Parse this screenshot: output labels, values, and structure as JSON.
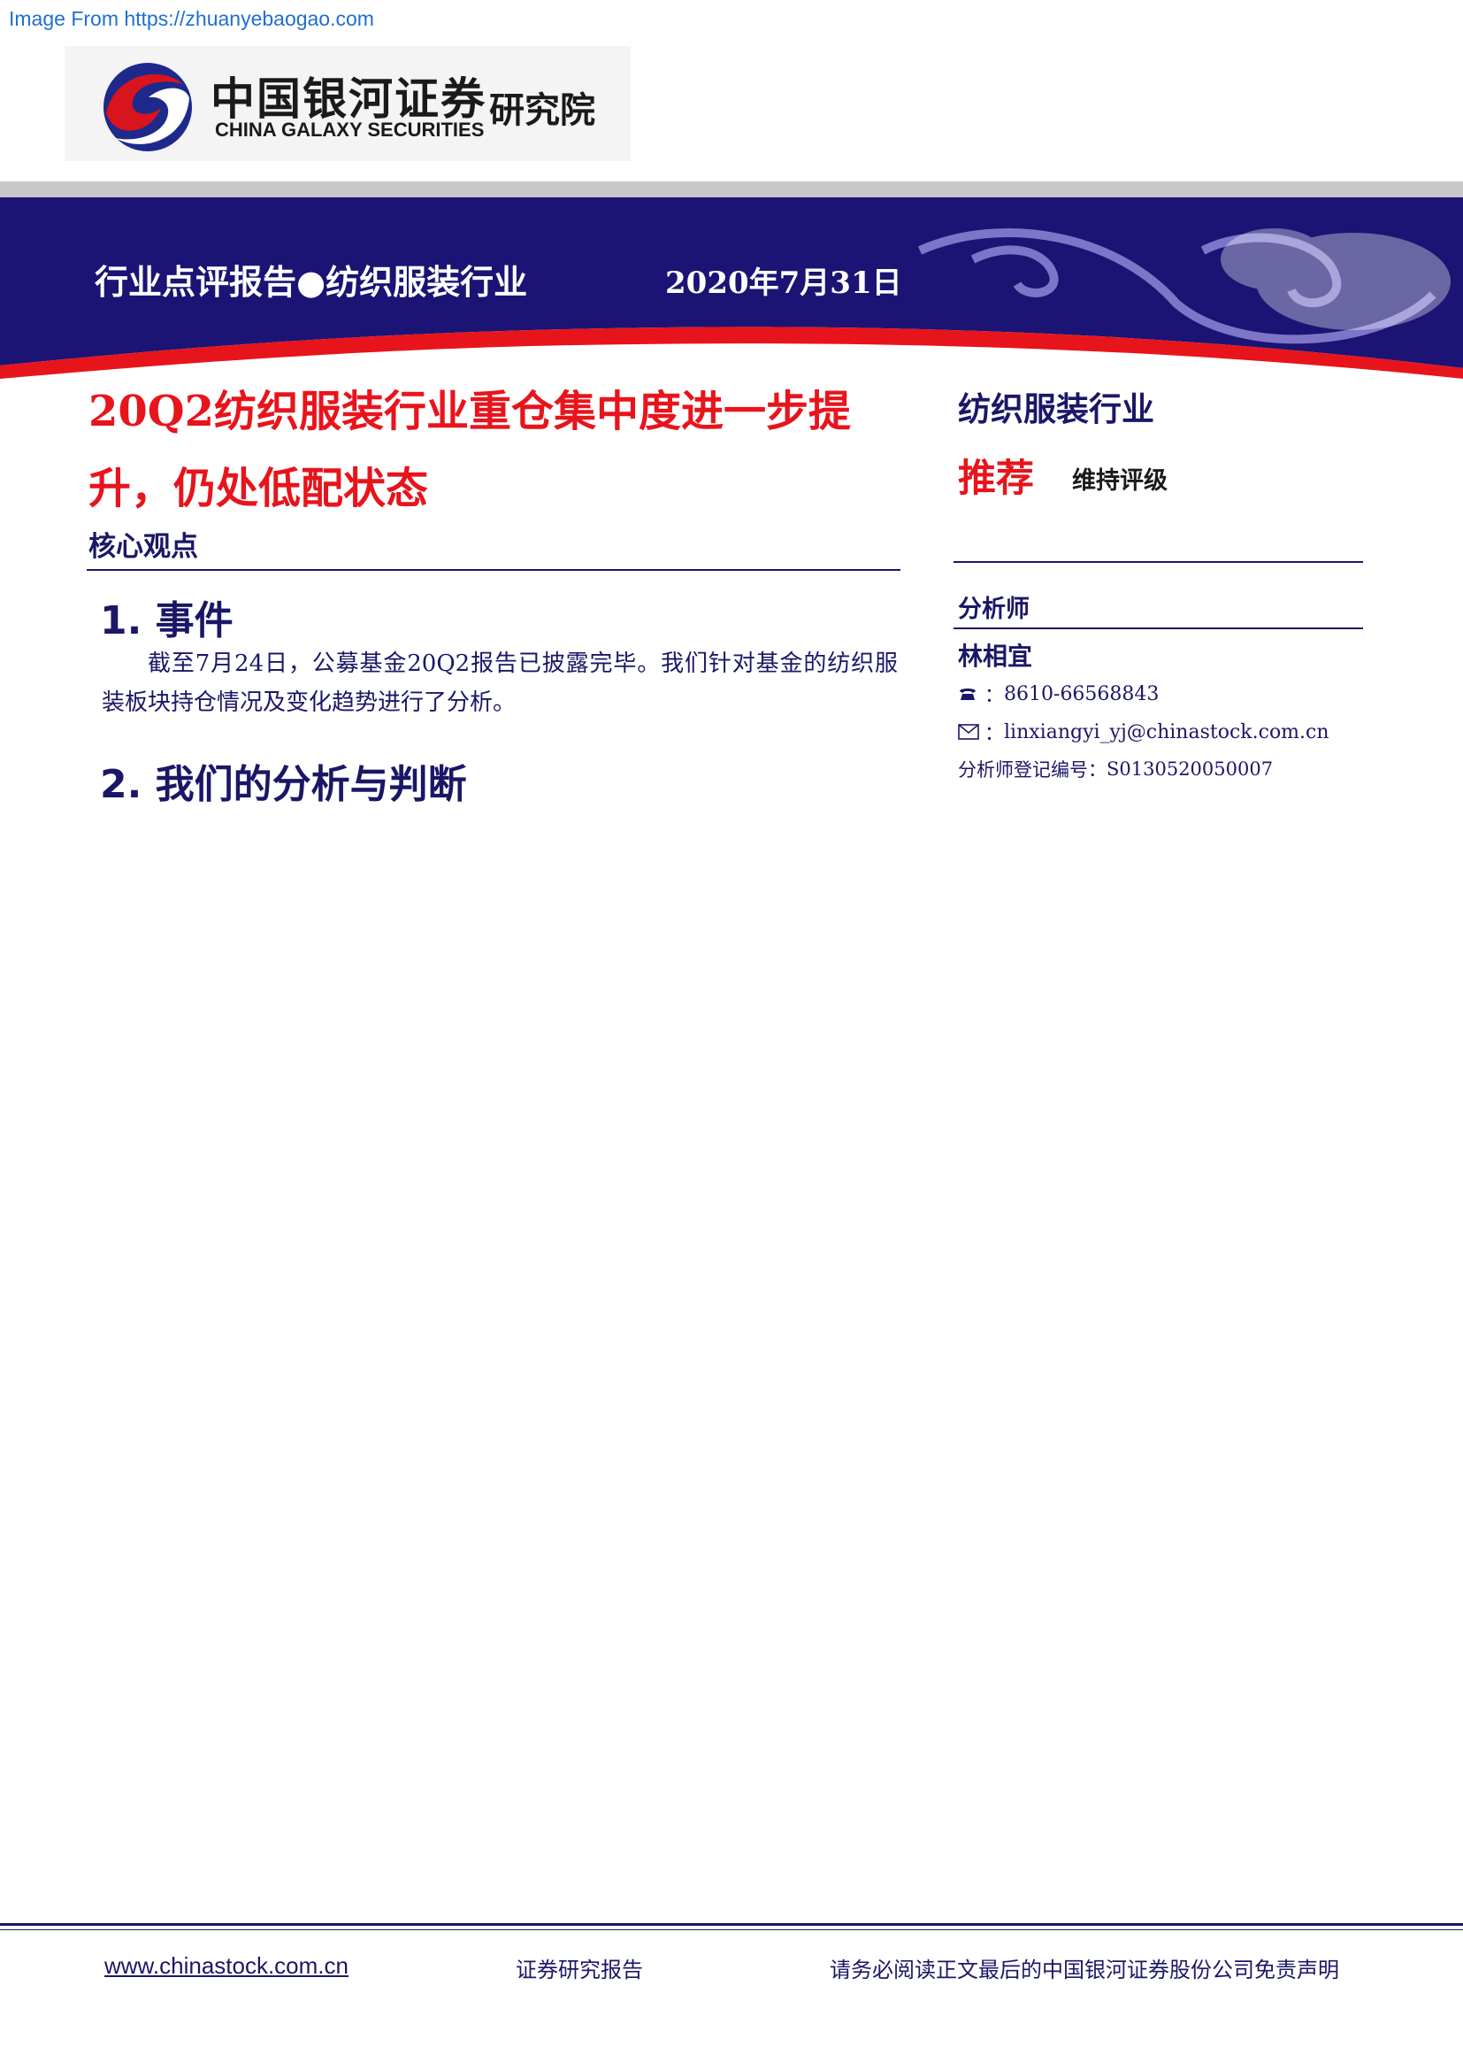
{
  "source_note": "Image From https://zhuanyebaogao.com",
  "logo": {
    "name_cn": "中国银河证券",
    "name_en": "CHINA GALAXY SECURITIES",
    "institute": "研究院"
  },
  "banner": {
    "report_type": "行业点评报告●纺织服装行业",
    "date": "2020年7月31日"
  },
  "title": {
    "line1": "20Q2纺织服装行业重仓集中度进一步提",
    "line2": "升，仍处低配状态"
  },
  "core_heading": "核心观点",
  "sections": [
    {
      "heading": "1. 事件",
      "body": "截至7月24日，公募基金20Q2报告已披露完毕。我们针对基金的纺织服装板块持仓情况及变化趋势进行了分析。"
    },
    {
      "heading": "2. 我们的分析与判断"
    }
  ],
  "sidebar": {
    "industry": "纺织服装行业",
    "rating": "推荐",
    "rating_note": "维持评级",
    "analyst_heading": "分析师",
    "analyst_name": "林相宜",
    "phone": "8610-66568843",
    "email": "linxiangyi_yj@chinastock.com.cn",
    "registration_label": "分析师登记编号：",
    "registration_no": "S0130520050007"
  },
  "footer": {
    "url": "www.chinastock.com.cn",
    "middle": "证券研究报告",
    "right": "请务必阅读正文最后的中国银河证券股份公司免责声明"
  },
  "colors": {
    "navy": "#1b1767",
    "red": "#e8141c",
    "link_blue": "#1f6fd0"
  },
  "icons": [
    "phone-icon",
    "envelope-icon"
  ]
}
